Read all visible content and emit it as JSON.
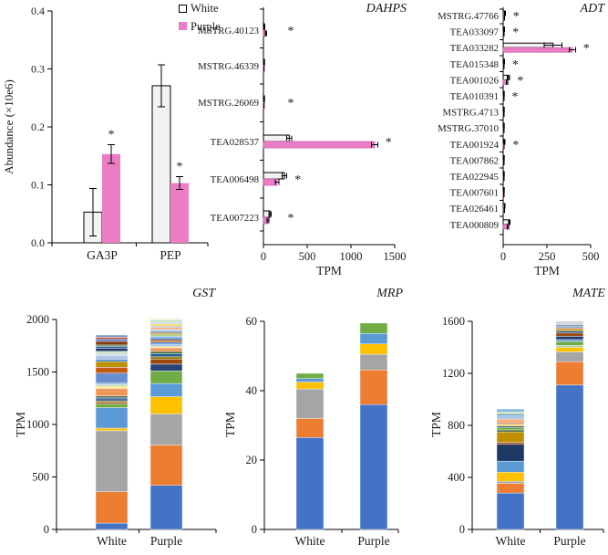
{
  "legend": {
    "white_label": "White",
    "purple_label": "Purple"
  },
  "colors": {
    "white_fill": "#F2F2F2",
    "white_border": "#000000",
    "purple_fill": "#EC7DC4",
    "purple_border": "#C75FA6",
    "axis": "#000000",
    "star": "#333333"
  },
  "chart_data": [
    {
      "id": "abundance",
      "type": "bar",
      "orientation": "vertical",
      "title": "",
      "ylabel": "Abundance (×10e6)",
      "ylim": [
        0,
        0.4
      ],
      "yticks": [
        0.0,
        0.1,
        0.2,
        0.3,
        0.4
      ],
      "categories": [
        "GA3P",
        "PEP"
      ],
      "legend_position": "top-right",
      "series": [
        {
          "name": "White",
          "values": [
            0.053,
            0.271
          ],
          "errors": [
            0.041,
            0.036
          ],
          "sig": [
            false,
            false
          ]
        },
        {
          "name": "Purple",
          "values": [
            0.153,
            0.103
          ],
          "errors": [
            0.016,
            0.011
          ],
          "sig": [
            true,
            true
          ]
        }
      ]
    },
    {
      "id": "dahps",
      "type": "bar",
      "orientation": "horizontal",
      "title": "DAHPS",
      "xlabel": "TPM",
      "xlim": [
        0,
        1500
      ],
      "xticks": [
        0,
        500,
        1000,
        1500
      ],
      "categories": [
        "MSTRG.40123",
        "MSTRG.46339",
        "MSTRG.26069",
        "TEA028537",
        "TEA006498",
        "TEA007223"
      ],
      "series": [
        {
          "name": "White",
          "values": [
            12,
            6,
            8,
            295,
            240,
            75
          ],
          "errors": [
            3,
            2,
            2,
            30,
            28,
            12
          ]
        },
        {
          "name": "Purple",
          "values": [
            28,
            5,
            4,
            1270,
            155,
            52
          ],
          "errors": [
            6,
            2,
            1,
            35,
            22,
            8
          ]
        }
      ],
      "sig": [
        true,
        false,
        true,
        true,
        true,
        true
      ]
    },
    {
      "id": "adt",
      "type": "bar",
      "orientation": "horizontal",
      "title": "ADT",
      "xlabel": "TPM",
      "xlim": [
        0,
        500
      ],
      "xticks": [
        0,
        250,
        500
      ],
      "categories": [
        "MSTRG.47766",
        "TEA033097",
        "TEA033282",
        "TEA015348",
        "TEA001026",
        "TEA010391",
        "MSTRG.4713",
        "MSTRG.37010",
        "TEA001924",
        "TEA007862",
        "TEA022945",
        "TEA007601",
        "TEA026461",
        "TEA000809"
      ],
      "series": [
        {
          "name": "White",
          "values": [
            10,
            7,
            285,
            6,
            30,
            4,
            4,
            4,
            8,
            5,
            5,
            5,
            9,
            35
          ],
          "errors": [
            2,
            2,
            50,
            1,
            6,
            1,
            1,
            1,
            2,
            1,
            1,
            1,
            2,
            5
          ]
        },
        {
          "name": "Purple",
          "values": [
            6,
            4,
            395,
            4,
            22,
            3,
            3,
            3,
            5,
            4,
            4,
            4,
            6,
            28
          ],
          "errors": [
            1,
            1,
            18,
            1,
            4,
            1,
            1,
            1,
            1,
            1,
            1,
            1,
            1,
            4
          ]
        }
      ],
      "sig": [
        true,
        true,
        true,
        true,
        true,
        true,
        false,
        false,
        true,
        false,
        false,
        false,
        false,
        false
      ]
    },
    {
      "id": "gst",
      "type": "bar",
      "stacked": true,
      "title": "GST",
      "ylabel": "TPM",
      "ylim": [
        0,
        2000
      ],
      "yticks": [
        0,
        500,
        1000,
        1500,
        2000
      ],
      "categories": [
        "White",
        "Purple"
      ],
      "totals": {
        "White": 1852,
        "Purple": 2010
      },
      "stacks": {
        "White": [
          {
            "value": 60,
            "color": "#4472C4"
          },
          {
            "value": 300,
            "color": "#ED7D31"
          },
          {
            "value": 580,
            "color": "#A5A5A5"
          },
          {
            "value": 25,
            "color": "#FFC000"
          },
          {
            "value": 195,
            "color": "#5B9BD5"
          },
          {
            "value": 35,
            "color": "#70AD47"
          },
          {
            "value": 15,
            "color": "#9E480E"
          },
          {
            "value": 15,
            "color": "#997300"
          },
          {
            "value": 20,
            "color": "#255E91"
          },
          {
            "value": 15,
            "color": "#264478"
          },
          {
            "value": 12,
            "color": "#43682B"
          },
          {
            "value": 70,
            "color": "#F1975A"
          },
          {
            "value": 25,
            "color": "#FFE699"
          },
          {
            "value": 12,
            "color": "#A9D18E"
          },
          {
            "value": 15,
            "color": "#9DC3E6"
          },
          {
            "value": 95,
            "color": "#698ED0"
          },
          {
            "value": 55,
            "color": "#C55A11"
          },
          {
            "value": 55,
            "color": "#BF8F00"
          },
          {
            "value": 18,
            "color": "#2E75B6"
          },
          {
            "value": 40,
            "color": "#B3C6E7"
          },
          {
            "value": 20,
            "color": "#D6DCE5"
          },
          {
            "value": 20,
            "color": "#C5E0B4"
          },
          {
            "value": 30,
            "color": "#203864"
          },
          {
            "value": 18,
            "color": "#2F5597"
          },
          {
            "value": 12,
            "color": "#538135"
          },
          {
            "value": 35,
            "color": "#843C0C"
          },
          {
            "value": 18,
            "color": "#4472C4"
          },
          {
            "value": 20,
            "color": "#C0504D"
          },
          {
            "value": 22,
            "color": "#8496B0"
          }
        ],
        "Purple": [
          {
            "value": 420,
            "color": "#4472C4"
          },
          {
            "value": 385,
            "color": "#ED7D31"
          },
          {
            "value": 295,
            "color": "#A5A5A5"
          },
          {
            "value": 165,
            "color": "#FFC000"
          },
          {
            "value": 125,
            "color": "#5B9BD5"
          },
          {
            "value": 120,
            "color": "#70AD47"
          },
          {
            "value": 65,
            "color": "#264478"
          },
          {
            "value": 45,
            "color": "#9E480E"
          },
          {
            "value": 25,
            "color": "#997300"
          },
          {
            "value": 30,
            "color": "#255E91"
          },
          {
            "value": 20,
            "color": "#43682B"
          },
          {
            "value": 35,
            "color": "#F1975A"
          },
          {
            "value": 15,
            "color": "#FFE699"
          },
          {
            "value": 20,
            "color": "#9DC3E6"
          },
          {
            "value": 20,
            "color": "#698ED0"
          },
          {
            "value": 20,
            "color": "#C55A11"
          },
          {
            "value": 15,
            "color": "#2F5597"
          },
          {
            "value": 20,
            "color": "#7CAFDD"
          },
          {
            "value": 15,
            "color": "#A9D18E"
          },
          {
            "value": 15,
            "color": "#BF8F00"
          },
          {
            "value": 20,
            "color": "#8496B0"
          },
          {
            "value": 15,
            "color": "#B3C6E7"
          },
          {
            "value": 20,
            "color": "#F4B183"
          },
          {
            "value": 15,
            "color": "#BFBFBF"
          },
          {
            "value": 20,
            "color": "#FFD966"
          },
          {
            "value": 15,
            "color": "#BDD7EE"
          },
          {
            "value": 20,
            "color": "#C5E0B4"
          },
          {
            "value": 15,
            "color": "#FFF2CC"
          }
        ]
      }
    },
    {
      "id": "mrp",
      "type": "bar",
      "stacked": true,
      "title": "MRP",
      "ylabel": "TPM",
      "ylim": [
        0,
        60
      ],
      "yticks": [
        0,
        20,
        40,
        60
      ],
      "categories": [
        "White",
        "Purple"
      ],
      "totals": {
        "White": 45,
        "Purple": 59.5
      },
      "stacks": {
        "White": [
          {
            "value": 26.5,
            "color": "#4472C4"
          },
          {
            "value": 5.5,
            "color": "#ED7D31"
          },
          {
            "value": 8.5,
            "color": "#A5A5A5"
          },
          {
            "value": 2,
            "color": "#FFC000"
          },
          {
            "value": 1,
            "color": "#5B9BD5"
          },
          {
            "value": 1.5,
            "color": "#70AD47"
          }
        ],
        "Purple": [
          {
            "value": 36,
            "color": "#4472C4"
          },
          {
            "value": 10,
            "color": "#ED7D31"
          },
          {
            "value": 4.5,
            "color": "#A5A5A5"
          },
          {
            "value": 3,
            "color": "#FFC000"
          },
          {
            "value": 3,
            "color": "#5B9BD5"
          },
          {
            "value": 3,
            "color": "#70AD47"
          }
        ]
      }
    },
    {
      "id": "mate",
      "type": "bar",
      "stacked": true,
      "title": "MATE",
      "ylabel": "TPM",
      "ylim": [
        0,
        1600
      ],
      "yticks": [
        0,
        400,
        800,
        1200,
        1600
      ],
      "categories": [
        "White",
        "Purple"
      ],
      "totals": {
        "White": 925,
        "Purple": 1600
      },
      "stacks": {
        "White": [
          {
            "value": 280,
            "color": "#4472C4"
          },
          {
            "value": 75,
            "color": "#ED7D31"
          },
          {
            "value": 15,
            "color": "#A5A5A5"
          },
          {
            "value": 70,
            "color": "#FFC000"
          },
          {
            "value": 85,
            "color": "#5B9BD5"
          },
          {
            "value": 130,
            "color": "#203864"
          },
          {
            "value": 15,
            "color": "#9E480E"
          },
          {
            "value": 80,
            "color": "#BF8F00"
          },
          {
            "value": 15,
            "color": "#43682B"
          },
          {
            "value": 20,
            "color": "#70AD47"
          },
          {
            "value": 10,
            "color": "#264478"
          },
          {
            "value": 15,
            "color": "#FFD966"
          },
          {
            "value": 10,
            "color": "#C55A11"
          },
          {
            "value": 30,
            "color": "#F4B183"
          },
          {
            "value": 25,
            "color": "#9DC3E6"
          },
          {
            "value": 10,
            "color": "#2E75B6"
          },
          {
            "value": 20,
            "color": "#C5E0B4"
          },
          {
            "value": 20,
            "color": "#7CAFDD"
          }
        ],
        "Purple": [
          {
            "value": 1110,
            "color": "#4472C4"
          },
          {
            "value": 180,
            "color": "#ED7D31"
          },
          {
            "value": 75,
            "color": "#A5A5A5"
          },
          {
            "value": 35,
            "color": "#FFC000"
          },
          {
            "value": 15,
            "color": "#A9D18E"
          },
          {
            "value": 30,
            "color": "#70AD47"
          },
          {
            "value": 15,
            "color": "#5B9BD5"
          },
          {
            "value": 25,
            "color": "#203864"
          },
          {
            "value": 25,
            "color": "#9E480E"
          },
          {
            "value": 15,
            "color": "#255E91"
          },
          {
            "value": 15,
            "color": "#BF8F00"
          },
          {
            "value": 10,
            "color": "#C55A11"
          },
          {
            "value": 10,
            "color": "#7CAFDD"
          },
          {
            "value": 15,
            "color": "#8496B0"
          },
          {
            "value": 10,
            "color": "#BFBFBF"
          },
          {
            "value": 15,
            "color": "#D0CECE"
          }
        ]
      }
    }
  ]
}
